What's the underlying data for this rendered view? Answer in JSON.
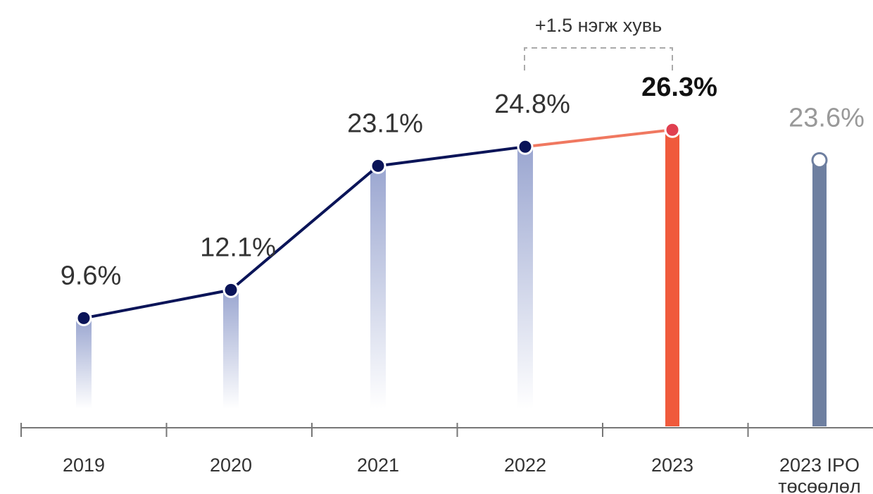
{
  "chart_data": {
    "type": "line",
    "annotation": "+1.5 нэгж хувь",
    "categories": [
      "2019",
      "2020",
      "2021",
      "2022",
      "2023",
      "2023 IPO төсөөлөл"
    ],
    "values": [
      9.6,
      12.1,
      23.1,
      24.8,
      26.3,
      23.6
    ],
    "value_labels": [
      "9.6%",
      "12.1%",
      "23.1%",
      "24.8%",
      "26.3%",
      "23.6%"
    ],
    "point_styles": [
      "filled",
      "filled",
      "filled",
      "filled",
      "highlight",
      "hollow"
    ],
    "line_color": "#0a1458",
    "line_segment_colors": [
      "#0a1458",
      "#0a1458",
      "#0a1458",
      "#f07860"
    ],
    "fade_color": "#8f9ccb",
    "highlight_color": "#f05a3c",
    "projection_color": "#6e7fa0",
    "ylim": [
      0,
      30
    ]
  }
}
